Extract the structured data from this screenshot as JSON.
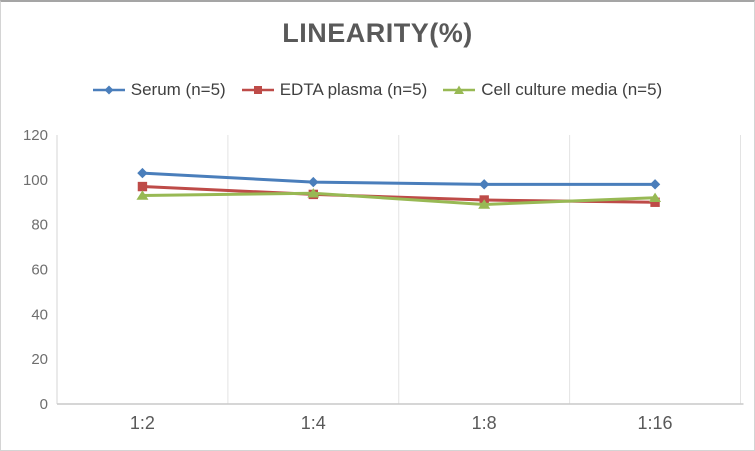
{
  "title": "LINEARITY(%)",
  "chart_data": {
    "type": "line",
    "title": "LINEARITY(%)",
    "categories": [
      "1:2",
      "1:4",
      "1:8",
      "1:16"
    ],
    "series": [
      {
        "name": "Serum (n=5)",
        "color": "#4A7EBB",
        "marker": "diamond",
        "values": [
          103,
          99,
          98,
          98
        ]
      },
      {
        "name": "EDTA plasma (n=5)",
        "color": "#BE4B48",
        "marker": "square",
        "values": [
          97,
          93.5,
          91,
          90
        ]
      },
      {
        "name": "Cell culture media (n=5)",
        "color": "#98B954",
        "marker": "triangle",
        "values": [
          93,
          94,
          89,
          92
        ]
      }
    ],
    "xlabel": "",
    "ylabel": "",
    "ylim": [
      0,
      120
    ],
    "yticks": [
      0,
      20,
      40,
      60,
      80,
      100,
      120
    ],
    "grid": "vertical-only",
    "legend_position": "top-center"
  },
  "colors": {
    "title_text": "#595959",
    "legend_text": "#3f3f3f",
    "ytick_text": "#6e6e6e",
    "xtick_text": "#595959",
    "gridline": "#e3e3e3",
    "yaxis_line": "#d6d6d6",
    "xaxis_line": "#c9c9c9"
  }
}
